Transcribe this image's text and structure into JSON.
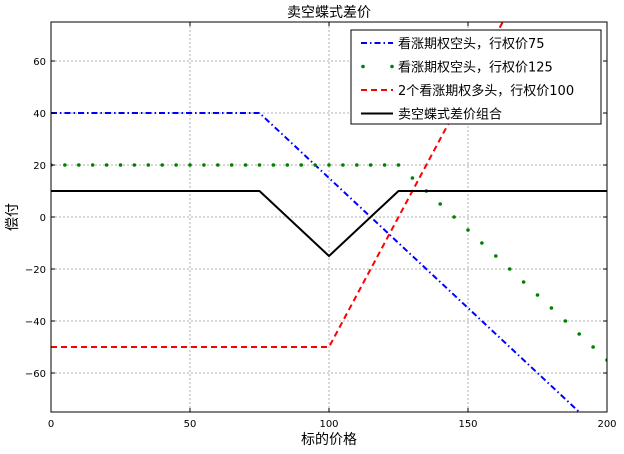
{
  "chart_data": {
    "type": "line",
    "title": "卖空蝶式差价",
    "xlabel": "标的价格",
    "ylabel": "偿付",
    "xlim": [
      0,
      200
    ],
    "ylim": [
      -75,
      75
    ],
    "xticks": [
      "0",
      "50",
      "100",
      "150",
      "200"
    ],
    "yticks": [
      "60",
      "40",
      "20",
      "0",
      "−20",
      "−40",
      "−60"
    ],
    "grid": true,
    "legend_position": "top-right",
    "series": [
      {
        "name": "看涨期权空头，行权价75",
        "style": "dash-dot",
        "color": "#0000ff",
        "x": [
          0,
          75,
          100,
          125,
          200
        ],
        "y": [
          40,
          40,
          15,
          -10,
          -85
        ]
      },
      {
        "name": "看涨期权空头，行权价125",
        "style": "dots",
        "color": "#008000",
        "x": [
          0,
          5,
          10,
          15,
          20,
          25,
          30,
          35,
          40,
          45,
          50,
          55,
          60,
          65,
          70,
          75,
          80,
          85,
          90,
          95,
          100,
          105,
          110,
          115,
          120,
          125,
          130,
          135,
          140,
          145,
          150,
          155,
          160,
          165,
          170,
          175,
          180,
          185,
          190,
          195,
          200
        ],
        "y": [
          20,
          20,
          20,
          20,
          20,
          20,
          20,
          20,
          20,
          20,
          20,
          20,
          20,
          20,
          20,
          20,
          20,
          20,
          20,
          20,
          20,
          20,
          20,
          20,
          20,
          20,
          15,
          10,
          5,
          0,
          -5,
          -10,
          -15,
          -20,
          -25,
          -30,
          -35,
          -40,
          -45,
          -50,
          -55
        ]
      },
      {
        "name": "2个看涨期权多头，行权价100",
        "style": "dashed",
        "color": "#ff0000",
        "x": [
          0,
          75,
          100,
          125,
          200
        ],
        "y": [
          -50,
          -50,
          -50,
          0,
          150
        ]
      },
      {
        "name": "卖空蝶式差价组合",
        "style": "solid",
        "color": "#000000",
        "x": [
          0,
          75,
          100,
          125,
          200
        ],
        "y": [
          10,
          10,
          -15,
          10,
          10
        ]
      }
    ]
  }
}
